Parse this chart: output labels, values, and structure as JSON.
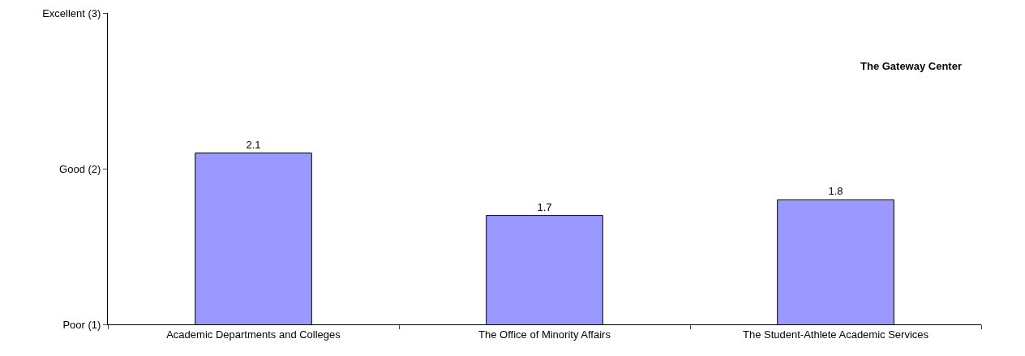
{
  "chart_data": {
    "type": "bar",
    "categories": [
      "Academic Departments and Colleges",
      "The Office of Minority Affairs",
      "The Student-Athlete Academic Services"
    ],
    "values": [
      2.1,
      1.7,
      1.8
    ],
    "color": "#9999ff",
    "ylim": [
      1,
      3
    ],
    "yticks": [
      {
        "value": 1,
        "label": "Poor (1)"
      },
      {
        "value": 2,
        "label": "Good (2)"
      },
      {
        "value": 3,
        "label": "Excellent (3)"
      }
    ],
    "grid": false,
    "data_labels": true,
    "annotations": [
      "The Gateway Center"
    ]
  }
}
